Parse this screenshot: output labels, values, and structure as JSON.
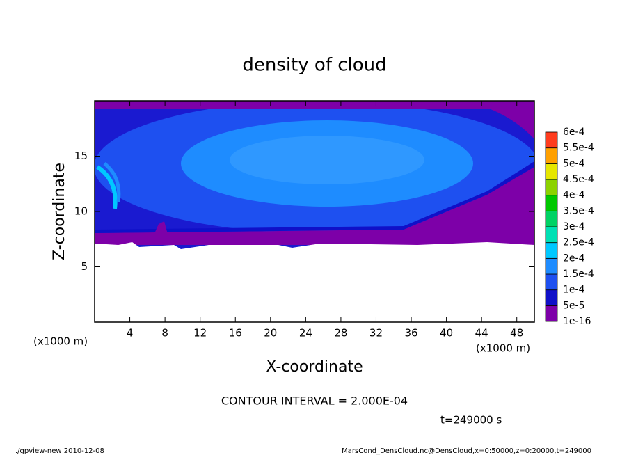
{
  "chart_data": {
    "type": "contour",
    "title": "density of cloud",
    "xlabel": "X-coordinate",
    "ylabel": "Z-coordinate",
    "x_unit": "(x1000 m)",
    "xlim": [
      0,
      50
    ],
    "ylim": [
      0,
      20
    ],
    "xticks": [
      4,
      8,
      12,
      16,
      20,
      24,
      28,
      32,
      36,
      40,
      44,
      48
    ],
    "yticks": [
      5,
      10,
      15
    ],
    "colorbar": {
      "levels": [
        {
          "value": 1e-16,
          "label": "1e-16"
        },
        {
          "value": 5e-05,
          "label": "5e-5"
        },
        {
          "value": 0.0001,
          "label": "1e-4"
        },
        {
          "value": 0.00015,
          "label": "1.5e-4"
        },
        {
          "value": 0.0002,
          "label": "2e-4"
        },
        {
          "value": 0.00025,
          "label": "2.5e-4"
        },
        {
          "value": 0.0003,
          "label": "3e-4"
        },
        {
          "value": 0.00035,
          "label": "3.5e-4"
        },
        {
          "value": 0.0004,
          "label": "4e-4"
        },
        {
          "value": 0.00045,
          "label": "4.5e-4"
        },
        {
          "value": 0.0005,
          "label": "5e-4"
        },
        {
          "value": 0.00055,
          "label": "5.5e-4"
        },
        {
          "value": 0.0006,
          "label": "6e-4"
        }
      ],
      "colors": [
        "#7d00a8",
        "#1010c8",
        "#1e50f0",
        "#1e8cff",
        "#00c8ff",
        "#00e0b4",
        "#00d264",
        "#00c800",
        "#8cd200",
        "#e6e600",
        "#ffa000",
        "#ff3c1e",
        "#ff9696"
      ]
    },
    "contour_interval": "CONTOUR INTERVAL = 2.000E-04",
    "time": "t=249000 s",
    "footer_left": "./gpview-new  2010-12-08",
    "footer_right": "MarsCond_DensCloud.nc@DensCloud,x=0:50000,z=0:20000,t=249000"
  }
}
